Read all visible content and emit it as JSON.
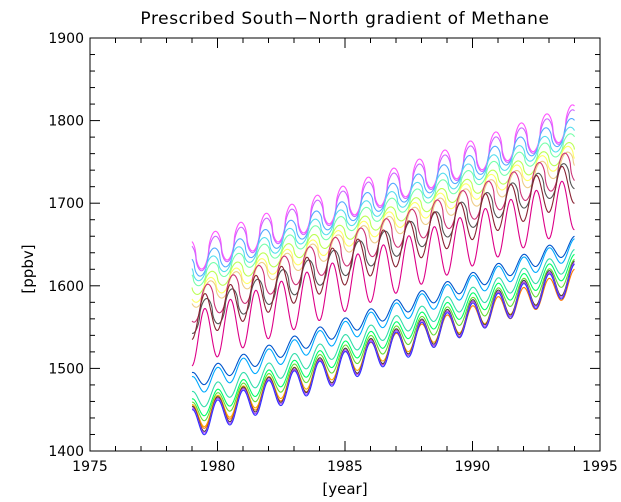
{
  "chart_data": {
    "type": "line",
    "title": "Prescribed South−North gradient of Methane",
    "xlabel": "[year]",
    "ylabel": "[ppbv]",
    "xlim": [
      1975,
      1995
    ],
    "ylim": [
      1400,
      1900
    ],
    "x_ticks": [
      "1975",
      "1980",
      "1985",
      "1990",
      "1995"
    ],
    "y_ticks": [
      "1400",
      "1500",
      "1600",
      "1700",
      "1800",
      "1900"
    ],
    "grid": false,
    "x_range": [
      1979.0,
      1994.0
    ],
    "series": [
      {
        "color": "#ff55ff",
        "start": 1636,
        "end": 1800,
        "amp": 20,
        "phase": 0.1,
        "sharp": true
      },
      {
        "color": "#cc66ff",
        "start": 1632,
        "end": 1796,
        "amp": 18,
        "phase": 0.1,
        "sharp": true
      },
      {
        "color": "#55aaff",
        "start": 1622,
        "end": 1790,
        "amp": 14,
        "phase": 0.15,
        "sharp": true
      },
      {
        "color": "#55ddee",
        "start": 1615,
        "end": 1782,
        "amp": 12,
        "phase": 0.2,
        "sharp": true
      },
      {
        "color": "#77ffaa",
        "start": 1608,
        "end": 1775,
        "amp": 11,
        "phase": 0.2,
        "sharp": true
      },
      {
        "color": "#bbff55",
        "start": 1598,
        "end": 1765,
        "amp": 11,
        "phase": 0.25,
        "sharp": true
      },
      {
        "color": "#ffff66",
        "start": 1590,
        "end": 1760,
        "amp": 12,
        "phase": 0.3,
        "sharp": true
      },
      {
        "color": "#eecc88",
        "start": 1585,
        "end": 1752,
        "amp": 13,
        "phase": 0.3,
        "sharp": true
      },
      {
        "color": "#cc3377",
        "start": 1575,
        "end": 1745,
        "amp": 20,
        "phase": 0.4,
        "sharp": true
      },
      {
        "color": "#555555",
        "start": 1560,
        "end": 1735,
        "amp": 18,
        "phase": 0.45,
        "sharp": true
      },
      {
        "color": "#882233",
        "start": 1560,
        "end": 1725,
        "amp": 25,
        "phase": 0.5,
        "sharp": false
      },
      {
        "color": "#dd0088",
        "start": 1535,
        "end": 1700,
        "amp": 32,
        "phase": 0.5,
        "sharp": false
      },
      {
        "color": "#0055cc",
        "start": 1485,
        "end": 1650,
        "amp": 10,
        "phase": 0.0,
        "sharp": false
      },
      {
        "color": "#00aaff",
        "start": 1478,
        "end": 1645,
        "amp": 12,
        "phase": 0.0,
        "sharp": false
      },
      {
        "color": "#33ddaa",
        "start": 1460,
        "end": 1632,
        "amp": 12,
        "phase": 0.0,
        "sharp": false
      },
      {
        "color": "#00ff66",
        "start": 1450,
        "end": 1625,
        "amp": 13,
        "phase": 0.0,
        "sharp": false
      },
      {
        "color": "#66dd33",
        "start": 1445,
        "end": 1618,
        "amp": 14,
        "phase": 0.0,
        "sharp": false
      },
      {
        "color": "#ffaa00",
        "start": 1440,
        "end": 1610,
        "amp": 16,
        "phase": 0.0,
        "sharp": false
      },
      {
        "color": "#ff7700",
        "start": 1438,
        "end": 1604,
        "amp": 16,
        "phase": 0.0,
        "sharp": false
      },
      {
        "color": "#444444",
        "start": 1436,
        "end": 1612,
        "amp": 18,
        "phase": 0.0,
        "sharp": false
      },
      {
        "color": "#aa44ff",
        "start": 1434,
        "end": 1610,
        "amp": 18,
        "phase": 0.0,
        "sharp": false
      },
      {
        "color": "#3333ff",
        "start": 1432,
        "end": 1608,
        "amp": 18,
        "phase": 0.0,
        "sharp": false
      }
    ]
  }
}
